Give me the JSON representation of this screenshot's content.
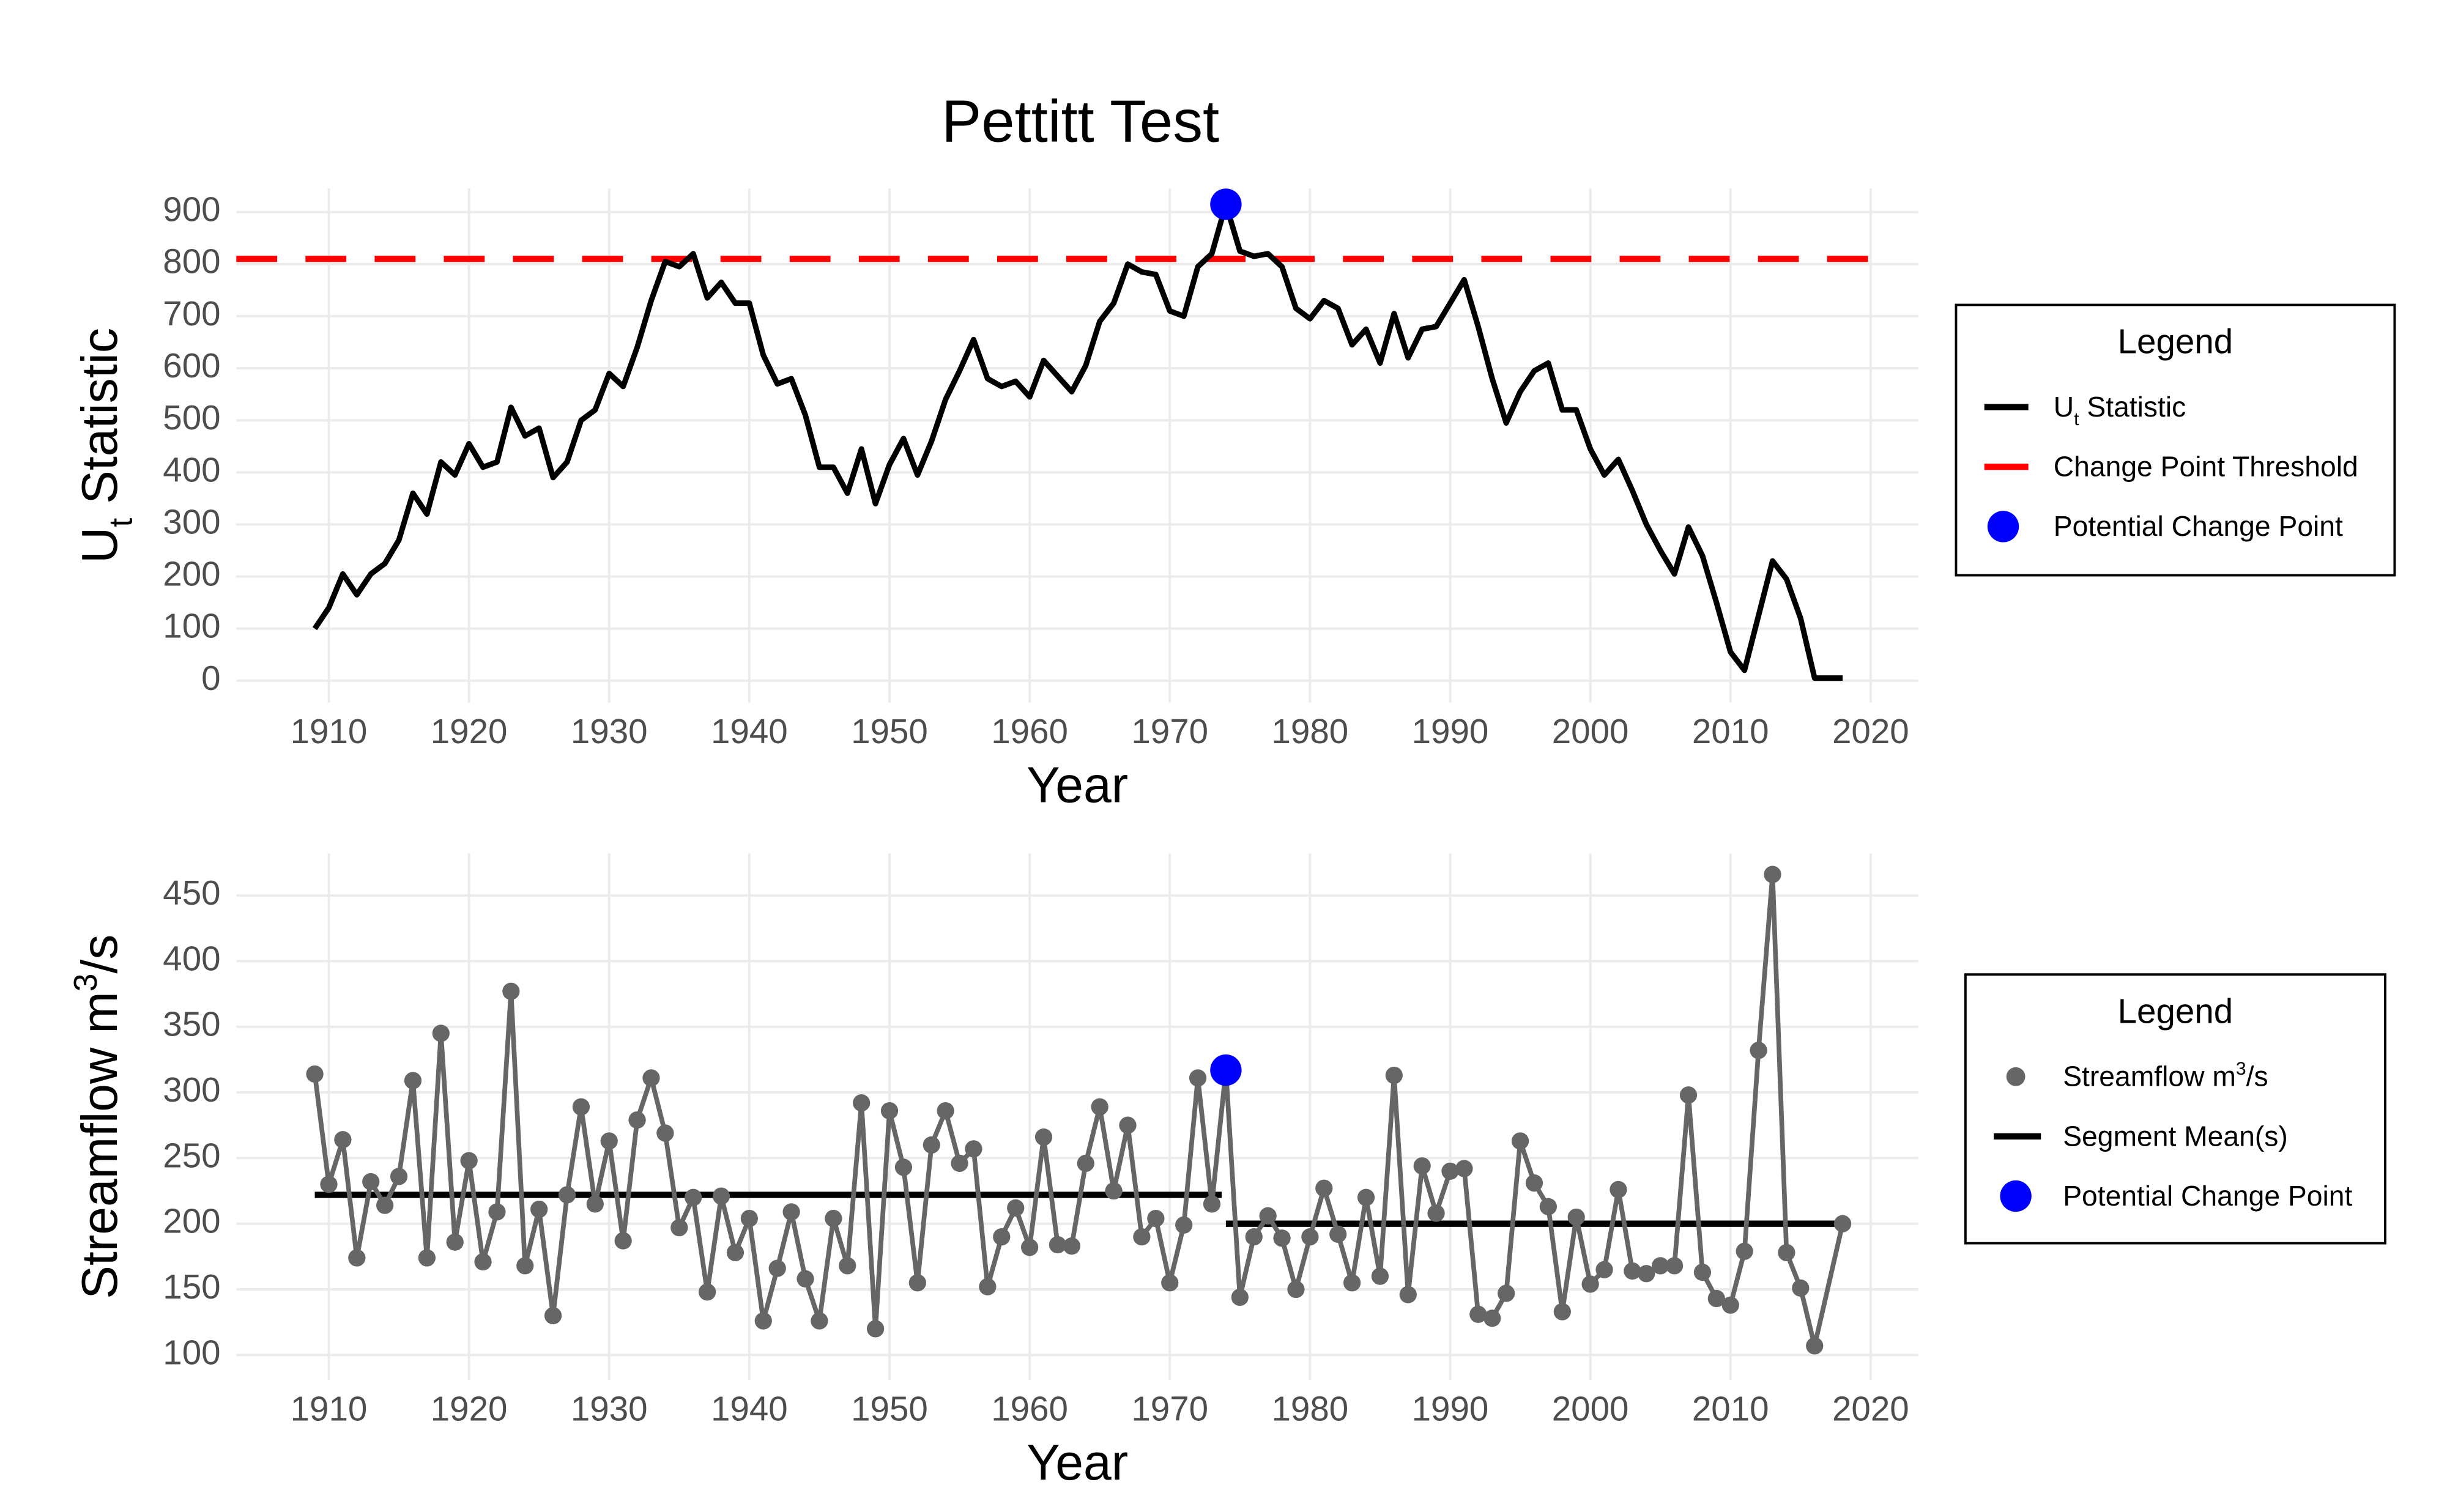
{
  "chart_data": [
    {
      "type": "line",
      "title": "Pettitt Test",
      "xlabel": "Year",
      "ylabel": [
        {
          "text": "U"
        },
        {
          "text": "t",
          "script": "sub"
        },
        {
          "text": " Statistic"
        }
      ],
      "xlim": [
        1903.4,
        2023.4
      ],
      "xticks": [
        1910,
        1920,
        1930,
        1940,
        1950,
        1960,
        1970,
        1980,
        1990,
        2000,
        2010,
        2020
      ],
      "ylim": [
        -42,
        945
      ],
      "yticks": [
        0,
        100,
        200,
        300,
        400,
        500,
        600,
        700,
        800,
        900
      ],
      "grid": true,
      "legend_title": "Legend",
      "series": [
        {
          "name": [
            {
              "text": "U"
            },
            {
              "text": "t",
              "script": "sub"
            },
            {
              "text": " Statistic"
            }
          ],
          "color": "#000000",
          "markers": false,
          "x": [
            1909,
            1910,
            1911,
            1912,
            1913,
            1914,
            1915,
            1916,
            1917,
            1918,
            1919,
            1920,
            1921,
            1922,
            1923,
            1924,
            1925,
            1926,
            1927,
            1928,
            1929,
            1930,
            1931,
            1932,
            1933,
            1934,
            1935,
            1936,
            1937,
            1938,
            1939,
            1940,
            1941,
            1942,
            1943,
            1944,
            1945,
            1946,
            1947,
            1948,
            1949,
            1950,
            1951,
            1952,
            1953,
            1954,
            1955,
            1956,
            1957,
            1958,
            1959,
            1960,
            1961,
            1962,
            1963,
            1964,
            1965,
            1966,
            1967,
            1968,
            1969,
            1970,
            1971,
            1972,
            1973,
            1974,
            1975,
            1976,
            1977,
            1978,
            1979,
            1980,
            1981,
            1982,
            1983,
            1984,
            1985,
            1986,
            1987,
            1988,
            1989,
            1990,
            1991,
            1992,
            1993,
            1994,
            1995,
            1996,
            1997,
            1998,
            1999,
            2000,
            2001,
            2002,
            2003,
            2004,
            2005,
            2006,
            2007,
            2008,
            2009,
            2010,
            2011,
            2012,
            2013,
            2014,
            2015,
            2016,
            2017,
            2018
          ],
          "values": [
            100,
            140,
            205,
            165,
            205,
            225,
            270,
            360,
            320,
            420,
            395,
            455,
            410,
            420,
            525,
            470,
            485,
            390,
            420,
            500,
            520,
            590,
            565,
            640,
            730,
            805,
            795,
            820,
            735,
            765,
            725,
            725,
            625,
            570,
            580,
            510,
            410,
            410,
            360,
            445,
            340,
            415,
            465,
            395,
            460,
            540,
            595,
            655,
            580,
            565,
            575,
            545,
            615,
            585,
            555,
            605,
            690,
            725,
            800,
            785,
            780,
            710,
            700,
            795,
            820,
            915,
            825,
            815,
            820,
            795,
            715,
            695,
            730,
            715,
            645,
            675,
            610,
            705,
            620,
            675,
            680,
            725,
            770,
            680,
            580,
            495,
            555,
            595,
            610,
            520,
            520,
            445,
            395,
            425,
            365,
            300,
            250,
            205,
            295,
            240,
            150,
            55,
            20,
            125,
            230,
            195,
            120,
            5,
            5,
            5
          ]
        }
      ],
      "threshold": {
        "name": "Change Point Threshold",
        "color": "#ff0000",
        "y": 810
      },
      "change_point": {
        "name": "Potential Change Point",
        "color": "#0000ff",
        "x": 1974,
        "y": 915
      }
    },
    {
      "type": "line",
      "xlabel": "Year",
      "ylabel": [
        {
          "text": "Streamflow m"
        },
        {
          "text": "3",
          "script": "super"
        },
        {
          "text": "/s"
        }
      ],
      "xlim": [
        1903.4,
        2023.4
      ],
      "xticks": [
        1910,
        1920,
        1930,
        1940,
        1950,
        1960,
        1970,
        1980,
        1990,
        2000,
        2010,
        2020
      ],
      "ylim": [
        81,
        482
      ],
      "yticks": [
        100,
        150,
        200,
        250,
        300,
        350,
        400,
        450
      ],
      "grid": true,
      "legend_title": "Legend",
      "series": [
        {
          "name": [
            {
              "text": "Streamflow m"
            },
            {
              "text": "3",
              "script": "super"
            },
            {
              "text": "/s"
            }
          ],
          "color": "#666666",
          "markers": true,
          "x": [
            1909,
            1910,
            1911,
            1912,
            1913,
            1914,
            1915,
            1916,
            1917,
            1918,
            1919,
            1920,
            1921,
            1922,
            1923,
            1924,
            1925,
            1926,
            1927,
            1928,
            1929,
            1930,
            1931,
            1932,
            1933,
            1934,
            1935,
            1936,
            1937,
            1938,
            1939,
            1940,
            1941,
            1942,
            1943,
            1944,
            1945,
            1946,
            1947,
            1948,
            1949,
            1950,
            1951,
            1952,
            1953,
            1954,
            1955,
            1956,
            1957,
            1958,
            1959,
            1960,
            1961,
            1962,
            1963,
            1964,
            1965,
            1966,
            1967,
            1968,
            1969,
            1970,
            1971,
            1972,
            1973,
            1974,
            1975,
            1976,
            1977,
            1978,
            1979,
            1980,
            1981,
            1982,
            1983,
            1984,
            1985,
            1986,
            1987,
            1988,
            1989,
            1990,
            1991,
            1992,
            1993,
            1994,
            1995,
            1996,
            1997,
            1998,
            1999,
            2000,
            2001,
            2002,
            2003,
            2004,
            2005,
            2006,
            2007,
            2008,
            2009,
            2010,
            2011,
            2012,
            2013,
            2014,
            2015,
            2016,
            2018
          ],
          "values": [
            314,
            230,
            264,
            174,
            232,
            214,
            236,
            309,
            174,
            345,
            186,
            248,
            171,
            209,
            377,
            168,
            211,
            130,
            222,
            289,
            215,
            263,
            187,
            279,
            311,
            269,
            197,
            220,
            148,
            221,
            178,
            204,
            126,
            166,
            209,
            158,
            126,
            204,
            168,
            292,
            120,
            286,
            243,
            155,
            260,
            286,
            246,
            257,
            152,
            190,
            212,
            182,
            266,
            184,
            183,
            246,
            289,
            225,
            275,
            190,
            204,
            155,
            199,
            311,
            215,
            317,
            144,
            190,
            206,
            189,
            150,
            190,
            227,
            192,
            155,
            220,
            160,
            313,
            146,
            244,
            208,
            240,
            242,
            131,
            128,
            147,
            263,
            231,
            213,
            133,
            205,
            154,
            165,
            226,
            164,
            162,
            168,
            168,
            298,
            163,
            143,
            138,
            179,
            332,
            466,
            178,
            151,
            107,
            200
          ]
        }
      ],
      "segments_name": "Segment Mean(s)",
      "segments_color": "#000000",
      "segments": [
        {
          "x": [
            1909,
            1973.7
          ],
          "value": 222
        },
        {
          "x": [
            1974,
            2018
          ],
          "value": 200
        }
      ],
      "change_point": {
        "name": "Potential Change Point",
        "color": "#0000ff",
        "x": 1974,
        "y": 317
      }
    }
  ]
}
